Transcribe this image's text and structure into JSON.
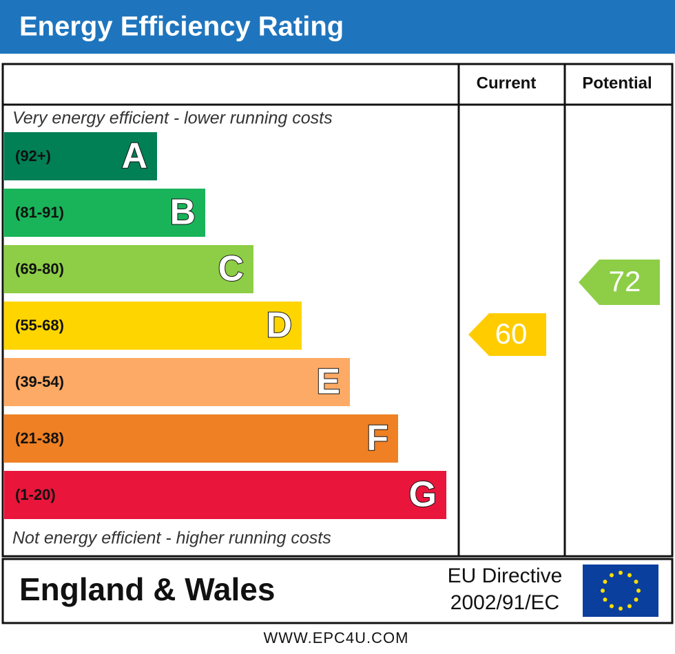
{
  "header": {
    "title": "Energy Efficiency Rating"
  },
  "columns": {
    "current": "Current",
    "potential": "Potential"
  },
  "top_note": "Very energy efficient - lower running costs",
  "bottom_note": "Not energy efficient - higher running costs",
  "bands": [
    {
      "range": "(92+)",
      "letter": "A",
      "color": "#008054"
    },
    {
      "range": "(81-91)",
      "letter": "B",
      "color": "#19b459"
    },
    {
      "range": "(69-80)",
      "letter": "C",
      "color": "#8dce46"
    },
    {
      "range": "(55-68)",
      "letter": "D",
      "color": "#ffd500"
    },
    {
      "range": "(39-54)",
      "letter": "E",
      "color": "#fcaa65"
    },
    {
      "range": "(21-38)",
      "letter": "F",
      "color": "#ef8023"
    },
    {
      "range": "(1-20)",
      "letter": "G",
      "color": "#e9153b"
    }
  ],
  "current": {
    "value": 60,
    "color": "#ffcc00"
  },
  "potential": {
    "value": 72,
    "color": "#8dce46"
  },
  "region": "England & Wales",
  "directive": {
    "line1": "EU Directive",
    "line2": "2002/91/EC"
  },
  "footer": "WWW.EPC4U.COM"
}
